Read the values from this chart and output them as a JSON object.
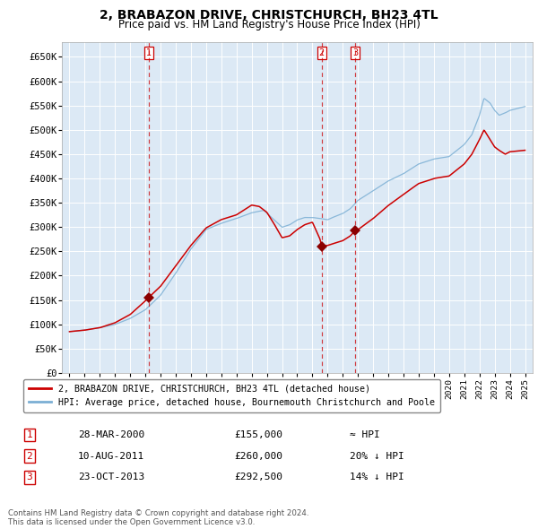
{
  "title": "2, BRABAZON DRIVE, CHRISTCHURCH, BH23 4TL",
  "subtitle": "Price paid vs. HM Land Registry's House Price Index (HPI)",
  "background_color": "#dce9f5",
  "grid_color": "#ffffff",
  "hpi_line_color": "#7bafd4",
  "price_line_color": "#cc0000",
  "marker_color": "#990000",
  "ylim": [
    0,
    680000
  ],
  "yticks": [
    0,
    50000,
    100000,
    150000,
    200000,
    250000,
    300000,
    350000,
    400000,
    450000,
    500000,
    550000,
    600000,
    650000
  ],
  "ytick_labels": [
    "£0",
    "£50K",
    "£100K",
    "£150K",
    "£200K",
    "£250K",
    "£300K",
    "£350K",
    "£400K",
    "£450K",
    "£500K",
    "£550K",
    "£600K",
    "£650K"
  ],
  "sale_dates": [
    2000.23,
    2011.61,
    2013.81
  ],
  "sale_prices": [
    155000,
    260000,
    292500
  ],
  "legend_house": "2, BRABAZON DRIVE, CHRISTCHURCH, BH23 4TL (detached house)",
  "legend_hpi": "HPI: Average price, detached house, Bournemouth Christchurch and Poole",
  "table_rows": [
    {
      "num": "1",
      "date": "28-MAR-2000",
      "price": "£155,000",
      "hpi": "≈ HPI"
    },
    {
      "num": "2",
      "date": "10-AUG-2011",
      "price": "£260,000",
      "hpi": "20% ↓ HPI"
    },
    {
      "num": "3",
      "date": "23-OCT-2013",
      "price": "£292,500",
      "hpi": "14% ↓ HPI"
    }
  ],
  "footer": "Contains HM Land Registry data © Crown copyright and database right 2024.\nThis data is licensed under the Open Government Licence v3.0."
}
